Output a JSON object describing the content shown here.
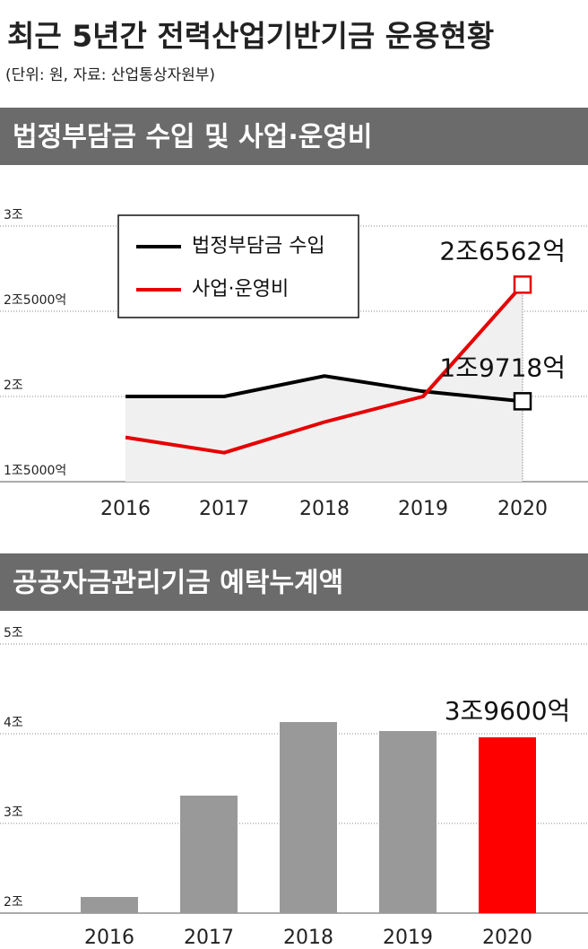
{
  "header": {
    "title": "최근 5년간 전력산업기반기금 운용현황",
    "subtitle": "(단위: 원, 자료: 산업통상자원부)"
  },
  "chart_data": [
    {
      "type": "line",
      "title": "법정부담금 수입 및 사업·운영비",
      "categories": [
        "2016",
        "2017",
        "2018",
        "2019",
        "2020"
      ],
      "series": [
        {
          "name": "법정부담금 수입",
          "color": "#000000",
          "values": [
            2.0,
            2.0,
            2.12,
            2.03,
            1.9718
          ],
          "value_labels": [
            null,
            null,
            null,
            null,
            "1조9718억"
          ]
        },
        {
          "name": "사업·운영비",
          "color": "#e60000",
          "values": [
            1.76,
            1.67,
            1.85,
            2.0,
            2.6562
          ],
          "value_labels": [
            null,
            null,
            null,
            null,
            "2조6562억"
          ]
        }
      ],
      "ylim": [
        1.5,
        3
      ],
      "yticks": [
        {
          "value": 1.5,
          "label": "1조5000억"
        },
        {
          "value": 2,
          "label": "2조"
        },
        {
          "value": 2.5,
          "label": "2조5000억"
        },
        {
          "value": 3,
          "label": "3조"
        }
      ],
      "grid": true,
      "legend": "top-left"
    },
    {
      "type": "bar",
      "title": "공공자금관리기금 예탁누계액",
      "categories": [
        "2016",
        "2017",
        "2018",
        "2019",
        "2020"
      ],
      "values": [
        2.18,
        3.31,
        4.13,
        4.03,
        3.96
      ],
      "value_labels": [
        null,
        null,
        null,
        null,
        "3조9600억"
      ],
      "colors": [
        "#999999",
        "#999999",
        "#999999",
        "#999999",
        "#ff0000"
      ],
      "ylim": [
        2,
        5
      ],
      "yticks": [
        {
          "value": 2,
          "label": "2조"
        },
        {
          "value": 3,
          "label": "3조"
        },
        {
          "value": 4,
          "label": "4조"
        },
        {
          "value": 5,
          "label": "5조"
        }
      ],
      "grid": true
    }
  ]
}
